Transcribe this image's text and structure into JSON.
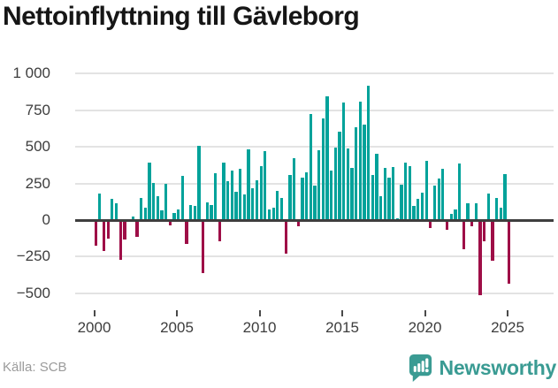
{
  "title": "Nettoinflyttning till Gävleborg",
  "source": "Källa: SCB",
  "brand": {
    "name": "Newsworthy",
    "icon": "bar-chart-speech-bubble-icon"
  },
  "colors": {
    "positive_bar": "#00a29a",
    "negative_bar": "#9e0e47",
    "axis": "#3e3e3e",
    "gridline": "#e3e3e3",
    "brand_teal": "#3a9b93"
  },
  "chart_data": {
    "type": "bar",
    "title": "Nettoinflyttning till Gävleborg",
    "xlabel": "",
    "ylabel": "",
    "frequency": "quarterly",
    "start_year": 2000,
    "start_quarter": 1,
    "grid": "horizontal",
    "ylim": [
      -560,
      1010
    ],
    "y_ticks": [
      {
        "label": "1 000",
        "value": 1000
      },
      {
        "label": "750",
        "value": 750
      },
      {
        "label": "500",
        "value": 500
      },
      {
        "label": "250",
        "value": 250
      },
      {
        "label": "0",
        "value": 0
      },
      {
        "label": "−250",
        "value": -250
      },
      {
        "label": "−500",
        "value": -500
      }
    ],
    "x_ticks": [
      {
        "label": "2000",
        "year": 2000
      },
      {
        "label": "2005",
        "year": 2005
      },
      {
        "label": "2010",
        "year": 2010
      },
      {
        "label": "2015",
        "year": 2015
      },
      {
        "label": "2020",
        "year": 2020
      },
      {
        "label": "2025",
        "year": 2025
      }
    ],
    "values": [
      -175,
      180,
      -210,
      -125,
      145,
      115,
      -270,
      -135,
      0,
      25,
      -115,
      150,
      85,
      390,
      255,
      165,
      65,
      250,
      -35,
      50,
      75,
      300,
      -160,
      105,
      95,
      505,
      -365,
      120,
      100,
      320,
      -145,
      395,
      265,
      335,
      195,
      350,
      175,
      480,
      220,
      270,
      370,
      470,
      70,
      85,
      200,
      150,
      -230,
      305,
      420,
      -45,
      290,
      325,
      725,
      235,
      475,
      695,
      845,
      340,
      495,
      605,
      805,
      490,
      355,
      635,
      810,
      650,
      915,
      305,
      450,
      165,
      355,
      290,
      360,
      15,
      240,
      395,
      370,
      95,
      145,
      185,
      405,
      -55,
      235,
      285,
      350,
      -65,
      40,
      70,
      385,
      -200,
      115,
      -40,
      115,
      -510,
      -145,
      180,
      -275,
      150,
      85,
      315,
      -435
    ]
  }
}
